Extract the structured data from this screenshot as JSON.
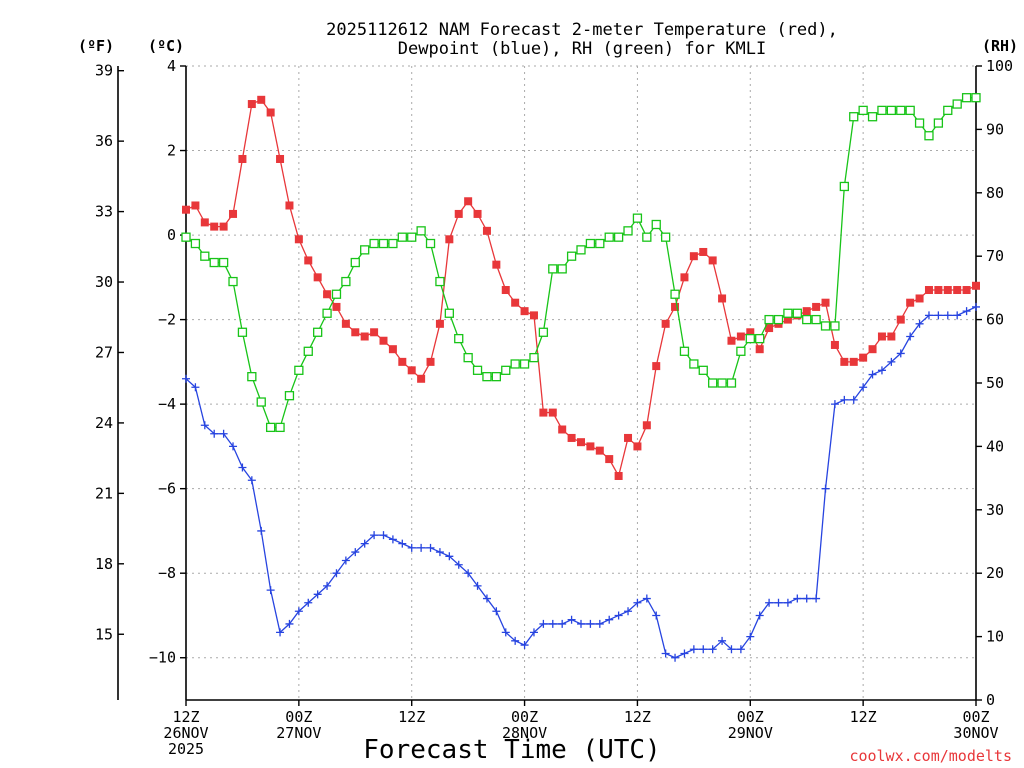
{
  "chart_data": {
    "type": "line",
    "title": [
      "2025112612 NAM Forecast 2-meter Temperature (red),",
      "Dewpoint (blue), RH (green) for KMLI"
    ],
    "xlabel": "Forecast Time (UTC)",
    "units": {
      "fahrenheit": "(ºF)",
      "celsius": "(ºC)",
      "rh": "(RH)"
    },
    "credit": "coolwx.com/modelts",
    "x_range": [
      0,
      84
    ],
    "x_ticks": [
      {
        "x": 0,
        "labels": [
          "12Z",
          "26NOV",
          "2025"
        ]
      },
      {
        "x": 12,
        "labels": [
          "00Z",
          "27NOV"
        ]
      },
      {
        "x": 24,
        "labels": [
          "12Z"
        ]
      },
      {
        "x": 36,
        "labels": [
          "00Z",
          "28NOV"
        ]
      },
      {
        "x": 48,
        "labels": [
          "12Z"
        ]
      },
      {
        "x": 60,
        "labels": [
          "00Z",
          "29NOV"
        ]
      },
      {
        "x": 72,
        "labels": [
          "12Z"
        ]
      },
      {
        "x": 84,
        "labels": [
          "00Z",
          "30NOV"
        ]
      }
    ],
    "y_celsius": {
      "range": [
        -11,
        4
      ],
      "ticks": [
        "4",
        "2",
        "0",
        "−2",
        "−4",
        "−6",
        "−8",
        "−10"
      ]
    },
    "y_fahrenheit": {
      "ticks": [
        "39",
        "36",
        "33",
        "30",
        "27",
        "24",
        "21",
        "18",
        "15"
      ]
    },
    "y_rh": {
      "range": [
        0,
        100
      ],
      "ticks": [
        "100",
        "90",
        "80",
        "70",
        "60",
        "50",
        "40",
        "30",
        "20",
        "10",
        "0"
      ]
    },
    "series": [
      {
        "name": "Temperature",
        "axis": "celsius",
        "color": "#e8373a",
        "marker": "filled-square",
        "values": [
          0.6,
          0.7,
          0.3,
          0.2,
          0.2,
          0.5,
          1.8,
          3.1,
          3.2,
          2.9,
          1.8,
          0.7,
          -0.1,
          -0.6,
          -1.0,
          -1.4,
          -1.7,
          -2.1,
          -2.3,
          -2.4,
          -2.3,
          -2.5,
          -2.7,
          -3.0,
          -3.2,
          -3.4,
          -3.0,
          -2.1,
          -0.1,
          0.5,
          0.8,
          0.5,
          0.1,
          -0.7,
          -1.3,
          -1.6,
          -1.8,
          -1.9,
          -4.2,
          -4.2,
          -4.6,
          -4.8,
          -4.9,
          -5.0,
          -5.1,
          -5.3,
          -5.7,
          -4.8,
          -5.0,
          -4.5,
          -3.1,
          -2.1,
          -1.7,
          -1.0,
          -0.5,
          -0.4,
          -0.6,
          -1.5,
          -2.5,
          -2.4,
          -2.3,
          -2.7,
          -2.2,
          -2.1,
          -2.0,
          -1.9,
          -1.8,
          -1.7,
          -1.6,
          -2.6,
          -3.0,
          -3.0,
          -2.9,
          -2.7,
          -2.4,
          -2.4,
          -2.0,
          -1.6,
          -1.5,
          -1.3,
          -1.3,
          -1.3,
          -1.3,
          -1.3,
          -1.2
        ]
      },
      {
        "name": "Dewpoint",
        "axis": "celsius",
        "color": "#2744e0",
        "marker": "plus",
        "values": [
          -3.4,
          -3.6,
          -4.5,
          -4.7,
          -4.7,
          -5.0,
          -5.5,
          -5.8,
          -7.0,
          -8.4,
          -9.4,
          -9.2,
          -8.9,
          -8.7,
          -8.5,
          -8.3,
          -8.0,
          -7.7,
          -7.5,
          -7.3,
          -7.1,
          -7.1,
          -7.2,
          -7.3,
          -7.4,
          -7.4,
          -7.4,
          -7.5,
          -7.6,
          -7.8,
          -8.0,
          -8.3,
          -8.6,
          -8.9,
          -9.4,
          -9.6,
          -9.7,
          -9.4,
          -9.2,
          -9.2,
          -9.2,
          -9.1,
          -9.2,
          -9.2,
          -9.2,
          -9.1,
          -9.0,
          -8.9,
          -8.7,
          -8.6,
          -9.0,
          -9.9,
          -10.0,
          -9.9,
          -9.8,
          -9.8,
          -9.8,
          -9.6,
          -9.8,
          -9.8,
          -9.5,
          -9.0,
          -8.7,
          -8.7,
          -8.7,
          -8.6,
          -8.6,
          -8.6,
          -6.0,
          -4.0,
          -3.9,
          -3.9,
          -3.6,
          -3.3,
          -3.2,
          -3.0,
          -2.8,
          -2.4,
          -2.1,
          -1.9,
          -1.9,
          -1.9,
          -1.9,
          -1.8,
          -1.7
        ]
      },
      {
        "name": "RH",
        "axis": "rh",
        "color": "#18c418",
        "marker": "open-square",
        "values": [
          73,
          72,
          70,
          69,
          69,
          66,
          58,
          51,
          47,
          43,
          43,
          48,
          52,
          55,
          58,
          61,
          64,
          66,
          69,
          71,
          72,
          72,
          72,
          73,
          73,
          74,
          72,
          66,
          61,
          57,
          54,
          52,
          51,
          51,
          52,
          53,
          53,
          54,
          58,
          68,
          68,
          70,
          71,
          72,
          72,
          73,
          73,
          74,
          76,
          73,
          75,
          73,
          64,
          55,
          53,
          52,
          50,
          50,
          50,
          55,
          57,
          57,
          60,
          60,
          61,
          61,
          60,
          60,
          59,
          59,
          81,
          92,
          93,
          92,
          93,
          93,
          93,
          93,
          91,
          89,
          91,
          93,
          94,
          95,
          95
        ]
      }
    ]
  }
}
